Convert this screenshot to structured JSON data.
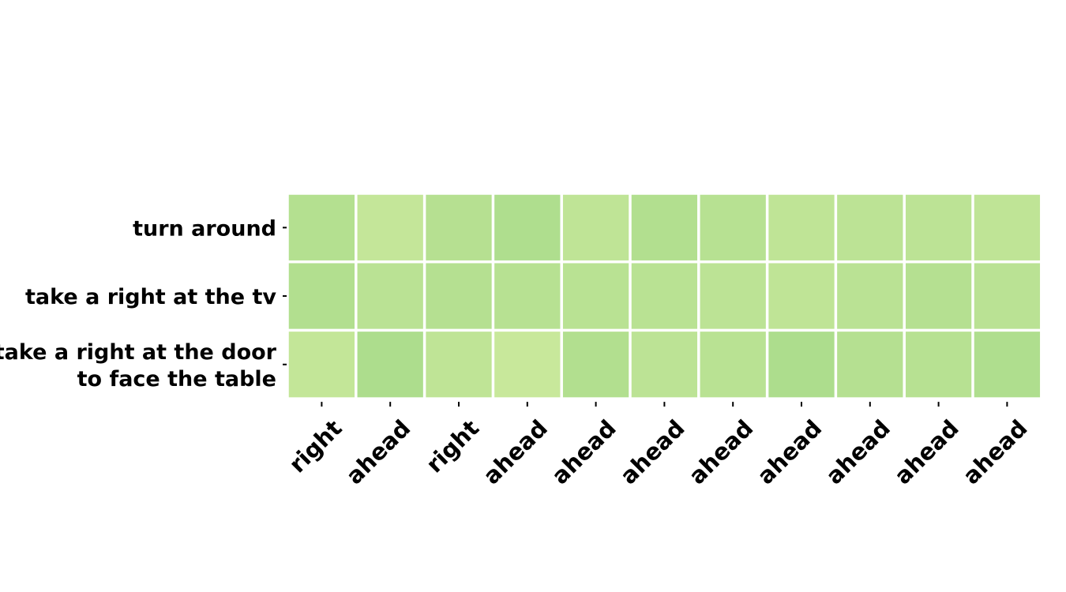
{
  "chart_data": {
    "type": "heatmap",
    "title": "",
    "xlabel": "",
    "ylabel": "",
    "colorbar": false,
    "colormap": "YlGn (light, low range)",
    "rows": [
      [
        "turn around"
      ],
      [
        "take a right at the tv"
      ],
      [
        "take a right at the door",
        "to face the table"
      ]
    ],
    "columns": [
      "right",
      "ahead",
      "right",
      "ahead",
      "ahead",
      "ahead",
      "ahead",
      "ahead",
      "ahead",
      "ahead",
      "ahead"
    ],
    "values": [
      [
        0.55,
        0.3,
        0.52,
        0.62,
        0.38,
        0.57,
        0.5,
        0.38,
        0.42,
        0.42,
        0.38
      ],
      [
        0.58,
        0.45,
        0.53,
        0.5,
        0.47,
        0.47,
        0.43,
        0.38,
        0.45,
        0.53,
        0.45
      ],
      [
        0.32,
        0.65,
        0.38,
        0.25,
        0.57,
        0.42,
        0.47,
        0.65,
        0.53,
        0.5,
        0.62
      ]
    ],
    "grid": false,
    "legend": "none"
  }
}
